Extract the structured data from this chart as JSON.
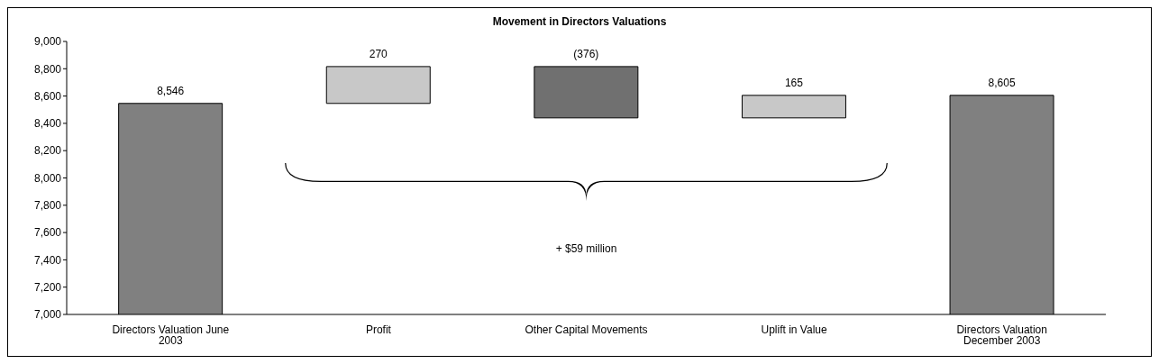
{
  "chart_data": {
    "type": "bar",
    "title": "Movement in Directors Valuations",
    "categories": [
      "Directors Valuation June 2003",
      "Profit",
      "Other Capital Movements",
      "Uplift in Value",
      "Directors Valuation December 2003"
    ],
    "values": [
      8546,
      270,
      -376,
      165,
      8605
    ],
    "base": [
      0,
      8546,
      8816,
      8440,
      0
    ],
    "colors": [
      "#808080",
      "#c8c8c8",
      "#707070",
      "#c8c8c8",
      "#808080"
    ],
    "value_labels": [
      "8,546",
      "270",
      "(376)",
      "165",
      "8,605"
    ],
    "ylim": [
      7000,
      9000
    ],
    "yticks": [
      {
        "value": 7000,
        "label": "7,000"
      },
      {
        "value": 7200,
        "label": "7,200"
      },
      {
        "value": 7400,
        "label": "7,400"
      },
      {
        "value": 7600,
        "label": "7,600"
      },
      {
        "value": 7800,
        "label": "7,800"
      },
      {
        "value": 8000,
        "label": "8,000"
      },
      {
        "value": 8200,
        "label": "8,200"
      },
      {
        "value": 8400,
        "label": "8,400"
      },
      {
        "value": 8600,
        "label": "8,600"
      },
      {
        "value": 8800,
        "label": "8,800"
      },
      {
        "value": 9000,
        "label": "9,000"
      }
    ],
    "annotations": [
      "+ $59 million"
    ],
    "grid": false,
    "legend": false
  }
}
